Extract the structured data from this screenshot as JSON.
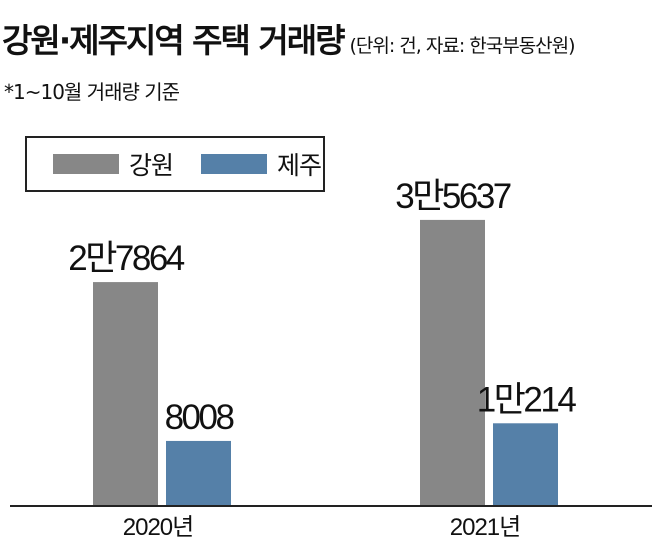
{
  "title": "강원·제주지역 주택 거래량",
  "unit_note": "(단위: 건, 자료: 한국부동산원)",
  "footnote": "*1~10월 거래량 기준",
  "colors": {
    "gangwon": "#878787",
    "jeju": "#5580a8",
    "axis": "#222222"
  },
  "chart_data": {
    "type": "bar",
    "title": "강원·제주지역 주택 거래량",
    "categories": [
      "2020년",
      "2021년"
    ],
    "series": [
      {
        "name": "강원",
        "values": [
          27864,
          35637
        ],
        "labels": [
          "2만7864",
          "3만5637"
        ]
      },
      {
        "name": "제주",
        "values": [
          8008,
          10214
        ],
        "labels": [
          "8008",
          "1만214"
        ]
      }
    ],
    "ylim": [
      0,
      41250
    ],
    "grid": false,
    "legend": "top-left"
  }
}
